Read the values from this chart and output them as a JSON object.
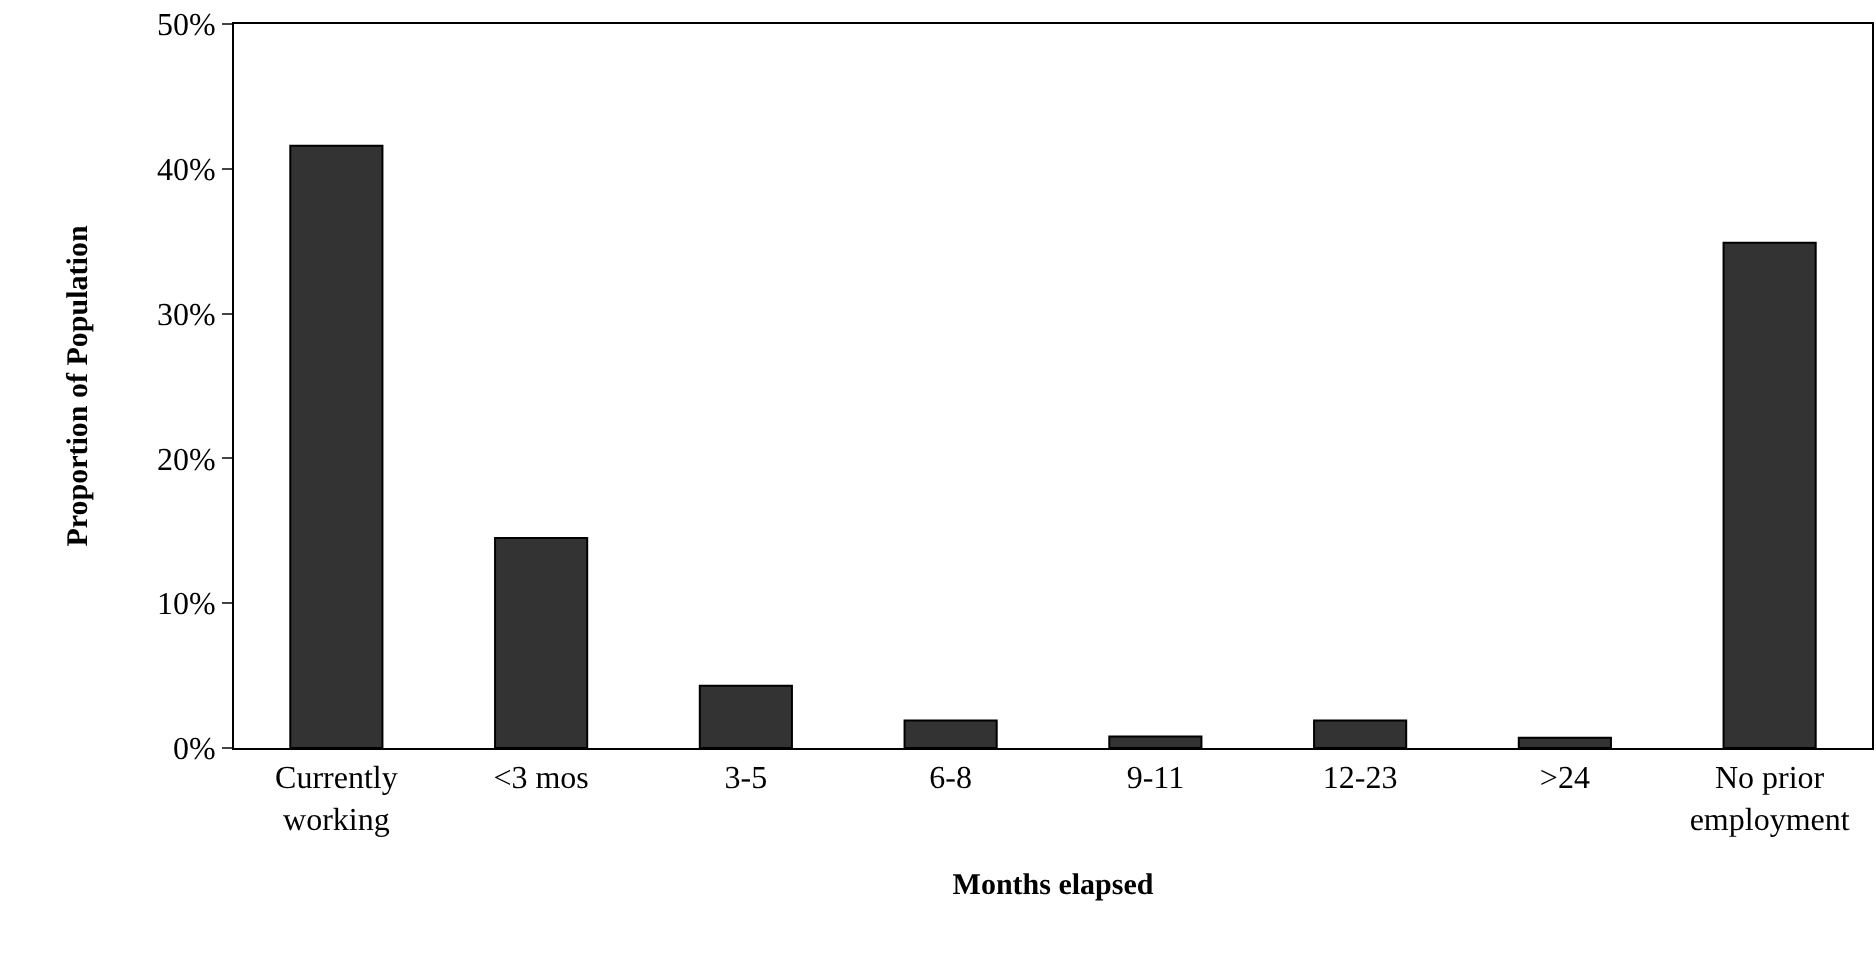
{
  "chart_data": {
    "type": "bar",
    "xlabel": "Months elapsed",
    "ylabel": "Proportion of Population",
    "categories": [
      "Currently\nworking",
      "<3 mos",
      "3-5",
      "6-8",
      "9-11",
      "12-23",
      ">24",
      "No prior\nemployment"
    ],
    "values": [
      41.6,
      14.5,
      4.3,
      1.9,
      0.8,
      1.9,
      0.7,
      34.9
    ],
    "color": "#333333",
    "ylim": [
      0,
      50
    ],
    "yticks": [
      {
        "value": 0,
        "label": "0%"
      },
      {
        "value": 10,
        "label": "10%"
      },
      {
        "value": 20,
        "label": "20%"
      },
      {
        "value": 30,
        "label": "30%"
      },
      {
        "value": 40,
        "label": "40%"
      },
      {
        "value": 50,
        "label": "50%"
      }
    ]
  }
}
